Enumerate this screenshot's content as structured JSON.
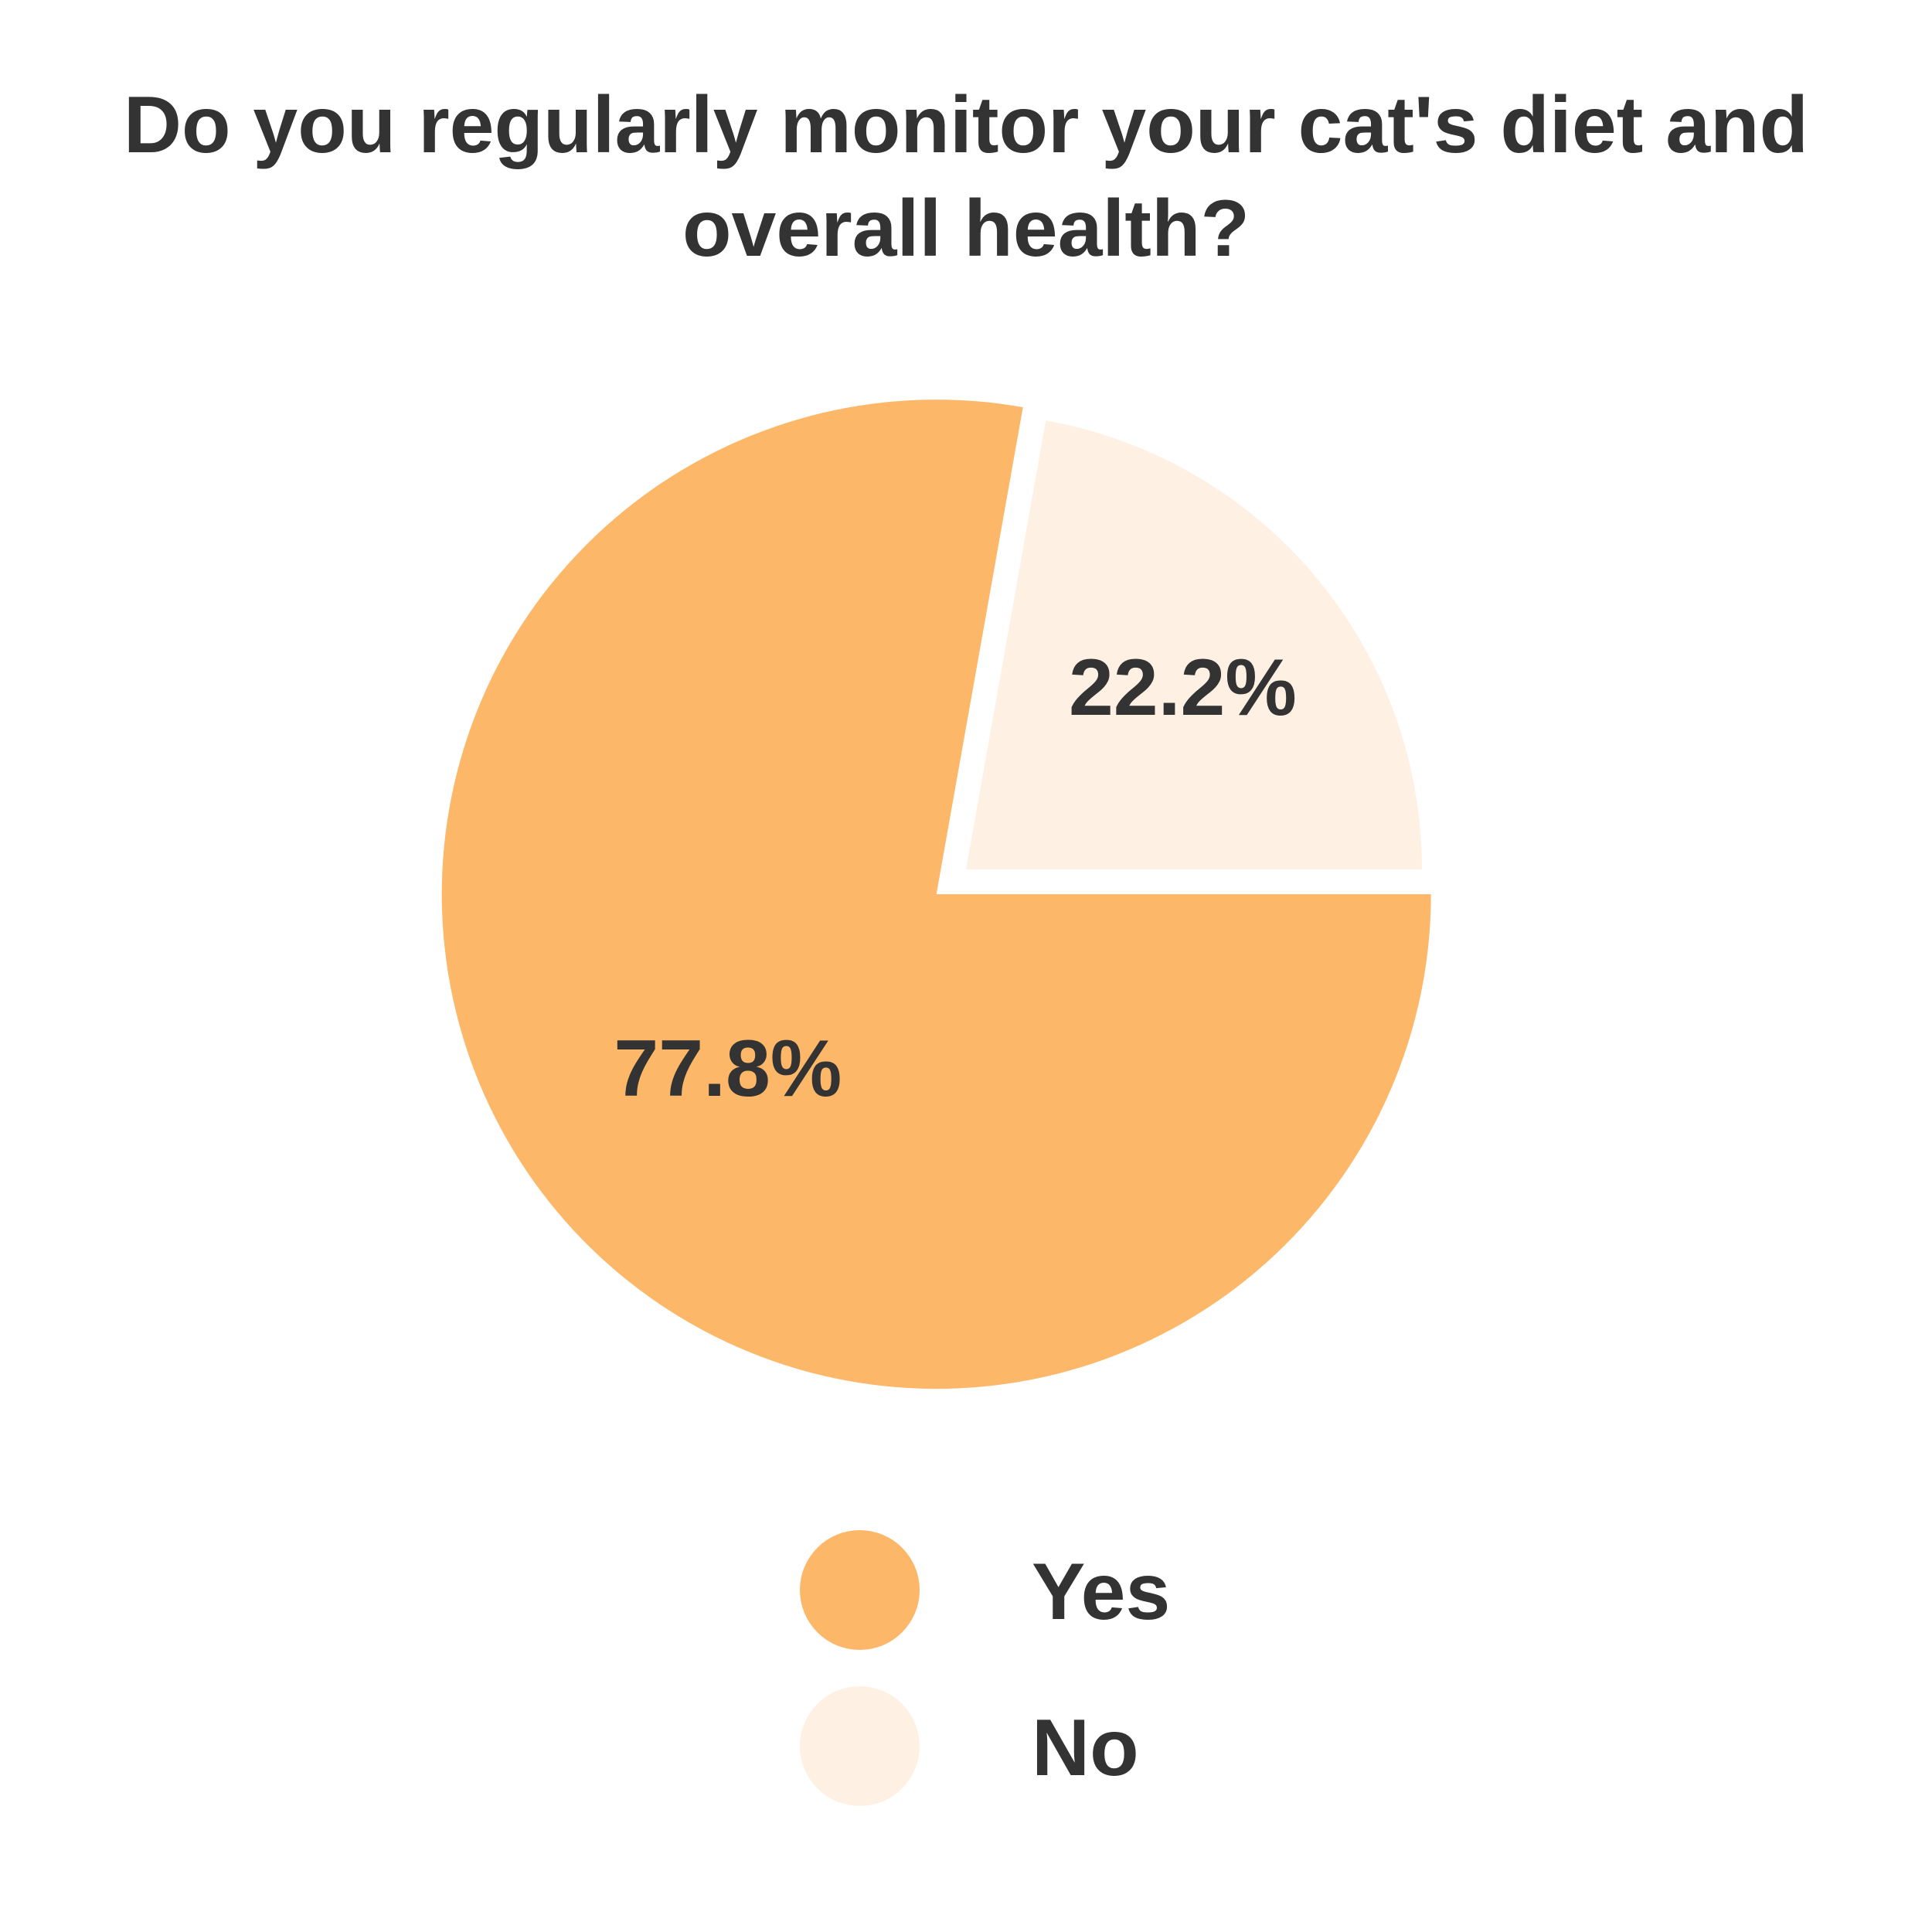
{
  "chart_data": {
    "type": "pie",
    "title": "Do you regularly monitor your cat's diet and\noverall health?",
    "slices": [
      {
        "label": "Yes",
        "value": 77.8,
        "display": "77.8%",
        "color": "#fdb768"
      },
      {
        "label": "No",
        "value": 22.2,
        "display": "22.2%",
        "color": "#fef1e3"
      }
    ],
    "legend_position": "bottom"
  },
  "legend": {
    "items": [
      {
        "label": "Yes",
        "color": "#fdb768"
      },
      {
        "label": "No",
        "color": "#fef1e3"
      }
    ]
  }
}
